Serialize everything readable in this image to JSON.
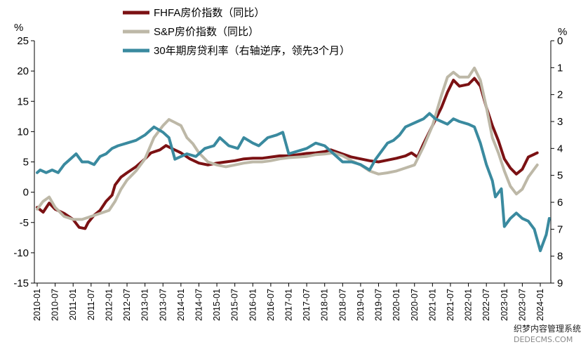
{
  "chart_data": {
    "type": "line",
    "title": "",
    "left_axis": {
      "unit_label": "%",
      "ylim": [
        -15,
        25
      ],
      "ticks": [
        25,
        20,
        15,
        10,
        5,
        0,
        -5,
        -10,
        -15
      ]
    },
    "right_axis": {
      "unit_label": "%",
      "ylim": [
        0,
        9
      ],
      "inverted": true,
      "ticks": [
        0,
        1,
        2,
        3,
        4,
        5,
        6,
        7,
        8,
        9
      ]
    },
    "x_ticks": [
      "2010-01",
      "2010-07",
      "2011-01",
      "2011-07",
      "2012-01",
      "2012-07",
      "2013-01",
      "2013-07",
      "2014-01",
      "2014-07",
      "2015-01",
      "2015-07",
      "2016-01",
      "2016-07",
      "2017-01",
      "2017-07",
      "2018-01",
      "2018-07",
      "2019-01",
      "2019-07",
      "2020-01",
      "2020-07",
      "2021-01",
      "2021-07",
      "2022-01",
      "2022-07",
      "2023-01",
      "2023-07",
      "2024-01"
    ],
    "legend_position": "top-center",
    "grid": false,
    "series": [
      {
        "name": "FHFA房价指数（同比）",
        "axis": "left",
        "color": "#7B1113",
        "points": [
          [
            "2010-01",
            -2.5
          ],
          [
            "2010-03",
            -3.3
          ],
          [
            "2010-05",
            -1.8
          ],
          [
            "2010-07",
            -2.8
          ],
          [
            "2010-10",
            -3.5
          ],
          [
            "2011-01",
            -4.5
          ],
          [
            "2011-03",
            -5.8
          ],
          [
            "2011-05",
            -6.0
          ],
          [
            "2011-06",
            -5.0
          ],
          [
            "2011-08",
            -3.8
          ],
          [
            "2011-10",
            -3.0
          ],
          [
            "2011-12",
            -1.5
          ],
          [
            "2012-02",
            -0.5
          ],
          [
            "2012-03",
            1.2
          ],
          [
            "2012-05",
            2.5
          ],
          [
            "2012-07",
            3.2
          ],
          [
            "2012-10",
            4.2
          ],
          [
            "2013-01",
            5.5
          ],
          [
            "2013-03",
            6.5
          ],
          [
            "2013-06",
            7.0
          ],
          [
            "2013-08",
            7.7
          ],
          [
            "2013-10",
            7.2
          ],
          [
            "2014-01",
            6.5
          ],
          [
            "2014-04",
            5.5
          ],
          [
            "2014-07",
            4.8
          ],
          [
            "2014-10",
            4.5
          ],
          [
            "2015-01",
            4.8
          ],
          [
            "2015-04",
            5.0
          ],
          [
            "2015-07",
            5.2
          ],
          [
            "2015-10",
            5.5
          ],
          [
            "2016-01",
            5.6
          ],
          [
            "2016-04",
            5.6
          ],
          [
            "2016-07",
            5.8
          ],
          [
            "2016-10",
            6.0
          ],
          [
            "2017-01",
            6.0
          ],
          [
            "2017-04",
            6.2
          ],
          [
            "2017-07",
            6.4
          ],
          [
            "2017-10",
            6.5
          ],
          [
            "2018-01",
            6.7
          ],
          [
            "2018-03",
            7.0
          ],
          [
            "2018-07",
            6.3
          ],
          [
            "2018-10",
            5.8
          ],
          [
            "2019-01",
            5.5
          ],
          [
            "2019-04",
            5.2
          ],
          [
            "2019-07",
            5.0
          ],
          [
            "2019-10",
            5.3
          ],
          [
            "2020-01",
            5.6
          ],
          [
            "2020-04",
            6.0
          ],
          [
            "2020-06",
            6.5
          ],
          [
            "2020-08",
            5.8
          ],
          [
            "2020-10",
            8.0
          ],
          [
            "2021-01",
            11.0
          ],
          [
            "2021-04",
            14.0
          ],
          [
            "2021-06",
            16.5
          ],
          [
            "2021-08",
            18.5
          ],
          [
            "2021-10",
            17.5
          ],
          [
            "2022-01",
            17.8
          ],
          [
            "2022-03",
            18.8
          ],
          [
            "2022-05",
            17.5
          ],
          [
            "2022-07",
            14.0
          ],
          [
            "2022-09",
            11.0
          ],
          [
            "2022-11",
            8.5
          ],
          [
            "2023-01",
            5.5
          ],
          [
            "2023-03",
            4.0
          ],
          [
            "2023-05",
            3.0
          ],
          [
            "2023-07",
            3.8
          ],
          [
            "2023-09",
            5.8
          ],
          [
            "2023-12",
            6.5
          ]
        ]
      },
      {
        "name": "S&P房价指数（同比）",
        "axis": "left",
        "color": "#BDB8A7",
        "points": [
          [
            "2010-01",
            -2.8
          ],
          [
            "2010-03",
            -1.5
          ],
          [
            "2010-05",
            -0.8
          ],
          [
            "2010-07",
            -2.5
          ],
          [
            "2010-10",
            -4.0
          ],
          [
            "2011-01",
            -4.5
          ],
          [
            "2011-04",
            -4.5
          ],
          [
            "2011-07",
            -4.0
          ],
          [
            "2011-10",
            -3.5
          ],
          [
            "2012-01",
            -3.0
          ],
          [
            "2012-03",
            -1.5
          ],
          [
            "2012-05",
            0.5
          ],
          [
            "2012-07",
            2.0
          ],
          [
            "2012-10",
            3.5
          ],
          [
            "2013-01",
            5.5
          ],
          [
            "2013-04",
            9.0
          ],
          [
            "2013-07",
            11.0
          ],
          [
            "2013-09",
            12.0
          ],
          [
            "2013-11",
            11.5
          ],
          [
            "2014-01",
            11.0
          ],
          [
            "2014-03",
            9.0
          ],
          [
            "2014-05",
            8.0
          ],
          [
            "2014-07",
            6.5
          ],
          [
            "2014-10",
            5.0
          ],
          [
            "2015-01",
            4.5
          ],
          [
            "2015-04",
            4.2
          ],
          [
            "2015-07",
            4.5
          ],
          [
            "2015-10",
            4.8
          ],
          [
            "2016-01",
            5.0
          ],
          [
            "2016-04",
            5.0
          ],
          [
            "2016-07",
            5.2
          ],
          [
            "2016-10",
            5.5
          ],
          [
            "2017-01",
            5.7
          ],
          [
            "2017-04",
            5.8
          ],
          [
            "2017-07",
            5.9
          ],
          [
            "2017-10",
            6.2
          ],
          [
            "2018-01",
            6.3
          ],
          [
            "2018-04",
            6.5
          ],
          [
            "2018-07",
            6.0
          ],
          [
            "2018-10",
            5.2
          ],
          [
            "2019-01",
            4.5
          ],
          [
            "2019-04",
            3.5
          ],
          [
            "2019-07",
            3.0
          ],
          [
            "2019-10",
            3.2
          ],
          [
            "2020-01",
            3.5
          ],
          [
            "2020-04",
            4.0
          ],
          [
            "2020-07",
            4.5
          ],
          [
            "2020-10",
            7.5
          ],
          [
            "2021-01",
            11.0
          ],
          [
            "2021-04",
            16.0
          ],
          [
            "2021-06",
            19.0
          ],
          [
            "2021-08",
            19.8
          ],
          [
            "2021-10",
            19.0
          ],
          [
            "2022-01",
            19.0
          ],
          [
            "2022-03",
            20.5
          ],
          [
            "2022-05",
            18.5
          ],
          [
            "2022-07",
            14.0
          ],
          [
            "2022-09",
            9.0
          ],
          [
            "2022-11",
            6.5
          ],
          [
            "2023-01",
            3.5
          ],
          [
            "2023-03",
            1.0
          ],
          [
            "2023-05",
            -0.3
          ],
          [
            "2023-07",
            0.5
          ],
          [
            "2023-09",
            2.5
          ],
          [
            "2023-12",
            4.5
          ]
        ]
      },
      {
        "name": "30年期房贷利率（右轴逆序，领先3个月）",
        "axis": "right",
        "color": "#3A8A9F",
        "points": [
          [
            "2010-01",
            4.9
          ],
          [
            "2010-02",
            4.8
          ],
          [
            "2010-04",
            4.9
          ],
          [
            "2010-06",
            4.8
          ],
          [
            "2010-08",
            4.9
          ],
          [
            "2010-10",
            4.6
          ],
          [
            "2010-12",
            4.4
          ],
          [
            "2011-02",
            4.2
          ],
          [
            "2011-04",
            4.5
          ],
          [
            "2011-06",
            4.5
          ],
          [
            "2011-08",
            4.6
          ],
          [
            "2011-10",
            4.3
          ],
          [
            "2011-12",
            4.2
          ],
          [
            "2012-02",
            4.0
          ],
          [
            "2012-04",
            3.9
          ],
          [
            "2012-07",
            3.8
          ],
          [
            "2012-10",
            3.7
          ],
          [
            "2013-01",
            3.5
          ],
          [
            "2013-04",
            3.2
          ],
          [
            "2013-07",
            3.4
          ],
          [
            "2013-09",
            3.6
          ],
          [
            "2013-11",
            4.4
          ],
          [
            "2014-01",
            4.3
          ],
          [
            "2014-03",
            4.2
          ],
          [
            "2014-06",
            4.3
          ],
          [
            "2014-09",
            4.0
          ],
          [
            "2014-12",
            3.9
          ],
          [
            "2015-02",
            3.6
          ],
          [
            "2015-05",
            3.9
          ],
          [
            "2015-08",
            4.0
          ],
          [
            "2015-10",
            3.6
          ],
          [
            "2016-01",
            3.8
          ],
          [
            "2016-03",
            3.9
          ],
          [
            "2016-06",
            3.6
          ],
          [
            "2016-09",
            3.5
          ],
          [
            "2016-11",
            3.4
          ],
          [
            "2017-01",
            4.2
          ],
          [
            "2017-04",
            4.1
          ],
          [
            "2017-07",
            4.0
          ],
          [
            "2017-10",
            3.8
          ],
          [
            "2018-01",
            3.9
          ],
          [
            "2018-04",
            4.2
          ],
          [
            "2018-07",
            4.5
          ],
          [
            "2018-10",
            4.5
          ],
          [
            "2019-01",
            4.6
          ],
          [
            "2019-04",
            4.8
          ],
          [
            "2019-06",
            4.4
          ],
          [
            "2019-08",
            4.1
          ],
          [
            "2019-10",
            3.8
          ],
          [
            "2019-12",
            3.7
          ],
          [
            "2020-02",
            3.5
          ],
          [
            "2020-04",
            3.2
          ],
          [
            "2020-06",
            3.1
          ],
          [
            "2020-08",
            3.0
          ],
          [
            "2020-10",
            2.9
          ],
          [
            "2020-12",
            2.7
          ],
          [
            "2021-02",
            2.9
          ],
          [
            "2021-04",
            3.0
          ],
          [
            "2021-06",
            3.1
          ],
          [
            "2021-08",
            2.9
          ],
          [
            "2021-10",
            3.0
          ],
          [
            "2022-01",
            3.1
          ],
          [
            "2022-03",
            3.2
          ],
          [
            "2022-05",
            3.8
          ],
          [
            "2022-07",
            4.6
          ],
          [
            "2022-09",
            5.2
          ],
          [
            "2022-10",
            5.8
          ],
          [
            "2022-12",
            5.5
          ],
          [
            "2023-01",
            6.9
          ],
          [
            "2023-03",
            6.6
          ],
          [
            "2023-05",
            6.4
          ],
          [
            "2023-07",
            6.6
          ],
          [
            "2023-09",
            6.7
          ],
          [
            "2023-11",
            7.0
          ],
          [
            "2024-01",
            7.8
          ],
          [
            "2024-03",
            7.2
          ],
          [
            "2024-04",
            6.6
          ]
        ]
      }
    ]
  }
}
